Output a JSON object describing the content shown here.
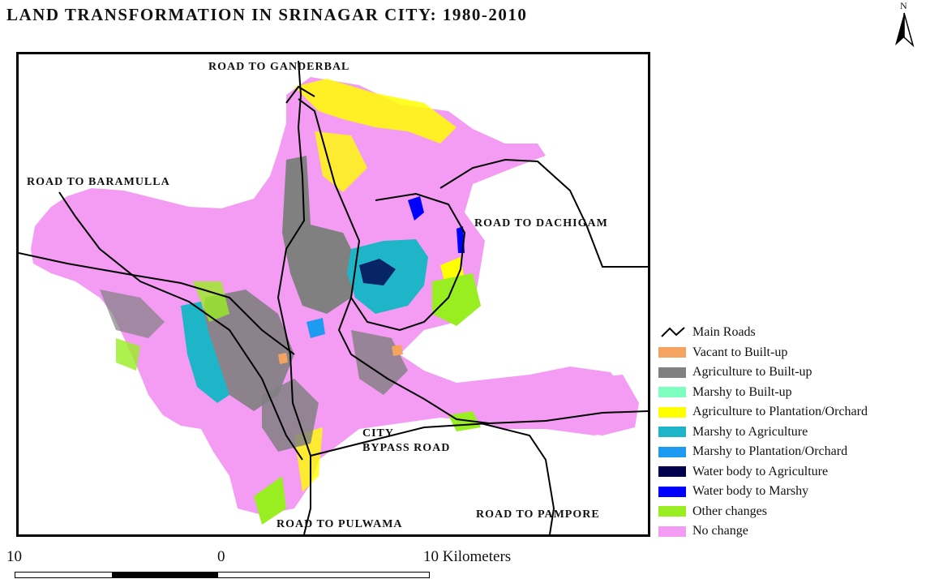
{
  "title": "LAND TRANSFORMATION IN SRINAGAR CITY: 1980-2010",
  "north_label": "N",
  "road_labels": {
    "ganderbal": "ROAD TO GANDERBAL",
    "baramulla": "ROAD TO BARAMULLA",
    "dachigam": "ROAD TO DACHIGAM",
    "bypass_line1": "CITY",
    "bypass_line2": "BYPASS ROAD",
    "pulwama": "ROAD TO PULWAMA",
    "pampore": "ROAD TO PAMPORE"
  },
  "legend": [
    {
      "label": "Main Roads",
      "color": "#000000",
      "kind": "line"
    },
    {
      "label": "Vacant to Built-up",
      "color": "#f4a460",
      "kind": "fill"
    },
    {
      "label": "Agriculture to Built-up",
      "color": "#808080",
      "kind": "fill"
    },
    {
      "label": "Marshy to Built-up",
      "color": "#7fffbf",
      "kind": "fill"
    },
    {
      "label": "Agriculture to Plantation/Orchard",
      "color": "#ffff00",
      "kind": "fill"
    },
    {
      "label": "Marshy to Agriculture",
      "color": "#1fb5c8",
      "kind": "fill"
    },
    {
      "label": "Marshy to Plantation/Orchard",
      "color": "#1e9bf0",
      "kind": "fill"
    },
    {
      "label": "Water body to Agriculture",
      "color": "#00004d",
      "kind": "fill"
    },
    {
      "label": "Water body to Marshy",
      "color": "#0000ff",
      "kind": "fill"
    },
    {
      "label": "Other changes",
      "color": "#99ee22",
      "kind": "fill"
    },
    {
      "label": "No change",
      "color": "#f49cf4",
      "kind": "fill"
    }
  ],
  "scale": {
    "left": "10",
    "middle": "0",
    "right": "10 Kilometers"
  }
}
